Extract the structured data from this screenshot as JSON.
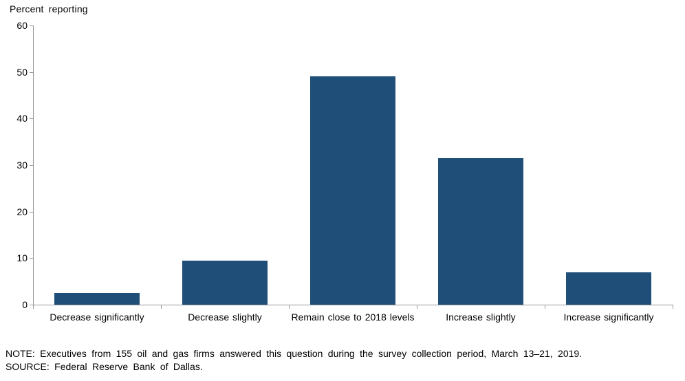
{
  "chart": {
    "y_axis_title": "Percent reporting"
  },
  "chart_data": {
    "type": "bar",
    "title": "",
    "xlabel": "",
    "ylabel": "Percent reporting",
    "categories": [
      "Decrease significantly",
      "Decrease slightly",
      "Remain close to 2018 levels",
      "Increase slightly",
      "Increase significantly"
    ],
    "values": [
      2.5,
      9.5,
      49,
      31.5,
      7
    ],
    "ylim": [
      0,
      60
    ],
    "yticks": [
      0,
      10,
      20,
      30,
      40,
      50,
      60
    ],
    "grid": false,
    "legend_position": "none",
    "bar_color": "#1F4E79",
    "axis_color": "#969696",
    "text_color": "#000000"
  },
  "notes": {
    "note": "NOTE: Executives from 155 oil and gas firms answered this question during the survey collection period, March 13–21, 2019.",
    "source": "SOURCE: Federal Reserve Bank of Dallas."
  }
}
